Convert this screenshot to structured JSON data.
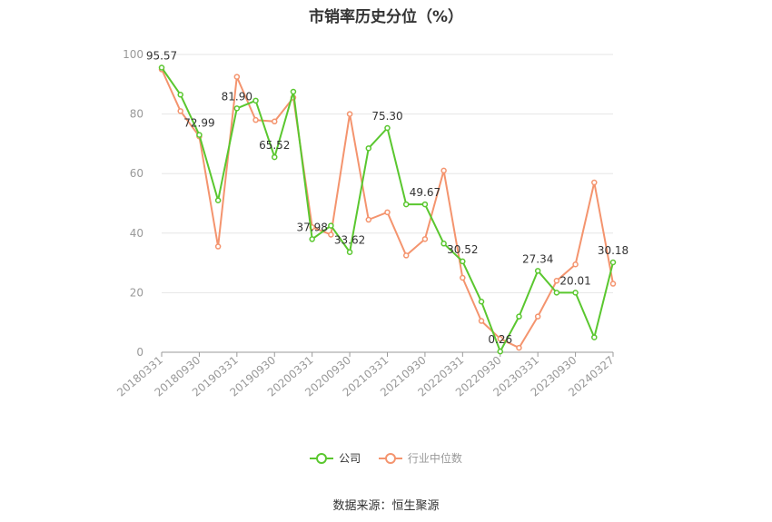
{
  "title": "市销率历史分位（%）",
  "source": "数据来源：恒生聚源",
  "colors": {
    "company": "#5ac72f",
    "industry": "#f4946e",
    "grid": "#e6e6e6",
    "axis": "#999999",
    "label": "#333333"
  },
  "chart_data": {
    "type": "line",
    "title": "市销率历史分位（%）",
    "xlabel": "",
    "ylabel": "",
    "ylim": [
      0,
      100
    ],
    "yticks": [
      0,
      20,
      40,
      60,
      80,
      100
    ],
    "grid": true,
    "legend_position": "bottom",
    "x_tick_labels": [
      "20180331",
      "20180930",
      "20190331",
      "20190930",
      "20200331",
      "20200930",
      "20210331",
      "20210930",
      "20220331",
      "20220930",
      "20230331",
      "20230930",
      "20240327"
    ],
    "series": [
      {
        "name": "公司",
        "values": [
          95.57,
          86.5,
          72.99,
          51,
          81.9,
          84.5,
          65.52,
          87.5,
          37.98,
          42.5,
          33.62,
          68.5,
          75.3,
          49.67,
          49.67,
          36.5,
          30.52,
          17,
          0.26,
          12,
          27.34,
          20.01,
          20.01,
          5,
          30.18
        ],
        "labels": [
          "95.57",
          "",
          "72.99",
          "",
          "81.90",
          "",
          "65.52",
          "",
          "37.98",
          "",
          "33.62",
          "",
          "75.30",
          "",
          "49.67",
          "",
          "30.52",
          "",
          "0.26",
          "",
          "27.34",
          "",
          "20.01",
          "",
          "30.18"
        ]
      },
      {
        "name": "行业中位数",
        "values": [
          95,
          81,
          72.5,
          35.5,
          92.5,
          78,
          77.5,
          85.5,
          42,
          39.5,
          80,
          44.5,
          47,
          32.5,
          38,
          61,
          25,
          10.5,
          4.5,
          1.5,
          12,
          24,
          29.5,
          57,
          23
        ]
      }
    ]
  }
}
